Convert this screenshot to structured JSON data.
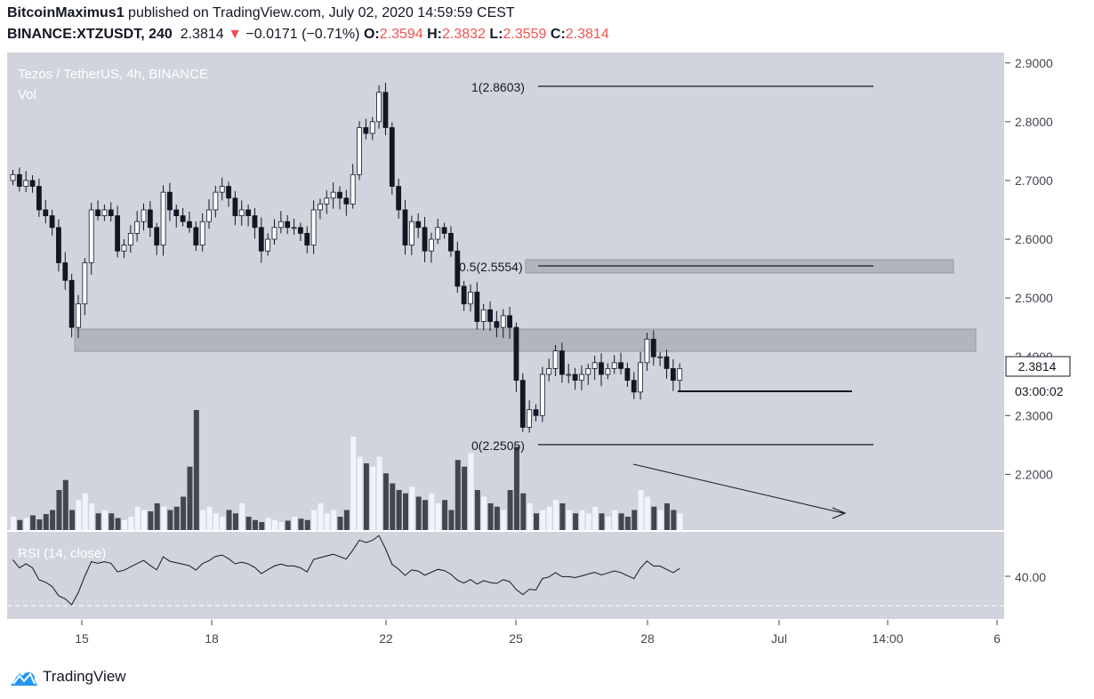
{
  "header": {
    "author": "BitcoinMaximus1",
    "published_text": "published on TradingView.com, July 02, 2020 14:59:59 CEST",
    "symbol": "BINANCE:XTZUSDT, 240",
    "last": "2.3814",
    "arrow": "▼",
    "change": "−0.0171 (−0.71%)",
    "o_label": "O:",
    "o": "2.3594",
    "h_label": "H:",
    "h": "2.3832",
    "l_label": "L:",
    "l": "2.3559",
    "c_label": "C:",
    "c": "2.3814"
  },
  "legend": {
    "title": "Tezos / TetherUS, 4h, BINANCE",
    "vol": "Vol",
    "rsi": "RSI (14, close)"
  },
  "fib": {
    "top": "1(2.8603)",
    "mid": "0.5(2.5554)",
    "bottom": "0(2.2505)"
  },
  "price_axis": [
    "2.9000",
    "2.8000",
    "2.7000",
    "2.6000",
    "2.5000",
    "2.4000",
    "2.3000",
    "2.2000"
  ],
  "rsi_axis": [
    "40.00"
  ],
  "last_price_label": "2.3814",
  "countdown": "03:00:02",
  "time_axis": [
    "15",
    "18",
    "22",
    "25",
    "28",
    "Jul",
    "14:00",
    "6"
  ],
  "brand": "TradingView",
  "colors": {
    "pane": "#d1d4dc",
    "up": "#ffffff",
    "down": "#131722",
    "band": "#b2b5be",
    "axis": "#434651",
    "red": "#ef5350"
  },
  "chart_data": {
    "type": "candlestick",
    "title": "Tezos / TetherUS, 4h, BINANCE",
    "ylim": [
      2.12,
      2.92
    ],
    "last_price": 2.3814,
    "ohlc_sample": {
      "open": 2.3594,
      "high": 2.3832,
      "low": 2.3559,
      "close": 2.3814
    },
    "fib_levels": [
      {
        "ratio": 1,
        "price": 2.8603
      },
      {
        "ratio": 0.5,
        "price": 2.5554
      },
      {
        "ratio": 0,
        "price": 2.2505
      }
    ],
    "resistance_zones": [
      [
        2.405,
        2.445
      ],
      [
        2.544,
        2.566
      ]
    ],
    "support_line": 2.342,
    "series_close": [
      2.71,
      2.69,
      2.7,
      2.69,
      2.65,
      2.64,
      2.62,
      2.56,
      2.53,
      2.45,
      2.49,
      2.56,
      2.65,
      2.64,
      2.65,
      2.64,
      2.58,
      2.59,
      2.61,
      2.63,
      2.65,
      2.62,
      2.59,
      2.68,
      2.65,
      2.64,
      2.63,
      2.62,
      2.59,
      2.63,
      2.65,
      2.68,
      2.69,
      2.67,
      2.64,
      2.65,
      2.64,
      2.62,
      2.58,
      2.6,
      2.62,
      2.63,
      2.62,
      2.62,
      2.61,
      2.59,
      2.65,
      2.66,
      2.67,
      2.68,
      2.67,
      2.66,
      2.71,
      2.79,
      2.78,
      2.8,
      2.85,
      2.79,
      2.69,
      2.65,
      2.59,
      2.63,
      2.62,
      2.58,
      2.6,
      2.62,
      2.61,
      2.58,
      2.52,
      2.49,
      2.51,
      2.46,
      2.48,
      2.46,
      2.45,
      2.47,
      2.45,
      2.36,
      2.28,
      2.31,
      2.3,
      2.37,
      2.38,
      2.41,
      2.37,
      2.37,
      2.36,
      2.37,
      2.38,
      2.39,
      2.37,
      2.38,
      2.39,
      2.38,
      2.36,
      2.34,
      2.39,
      2.43,
      2.4,
      2.4,
      2.38,
      2.36,
      2.38
    ],
    "volume_relative": [
      0.2,
      0.15,
      0.18,
      0.22,
      0.16,
      0.24,
      0.3,
      0.6,
      0.75,
      0.3,
      0.45,
      0.55,
      0.4,
      0.25,
      0.3,
      0.25,
      0.18,
      0.15,
      0.2,
      0.35,
      0.3,
      0.28,
      0.4,
      0.35,
      0.3,
      0.35,
      0.5,
      0.95,
      1.8,
      0.3,
      0.35,
      0.25,
      0.2,
      0.3,
      0.25,
      0.4,
      0.2,
      0.15,
      0.12,
      0.18,
      0.15,
      0.12,
      0.14,
      0.2,
      0.17,
      0.15,
      0.3,
      0.4,
      0.25,
      0.3,
      0.2,
      0.3,
      1.4,
      1.1,
      1.0,
      0.95,
      1.1,
      0.85,
      0.7,
      0.6,
      0.55,
      0.65,
      0.5,
      0.45,
      0.55,
      0.4,
      0.45,
      0.3,
      1.05,
      0.95,
      1.15,
      0.6,
      0.5,
      0.4,
      0.35,
      0.3,
      0.6,
      1.25,
      0.55,
      0.4,
      0.25,
      0.3,
      0.35,
      0.45,
      0.4,
      0.3,
      0.25,
      0.3,
      0.25,
      0.35,
      0.25,
      0.2,
      0.3,
      0.25,
      0.2,
      0.3,
      0.6,
      0.5,
      0.35,
      0.3,
      0.4,
      0.3,
      0.25
    ]
  }
}
